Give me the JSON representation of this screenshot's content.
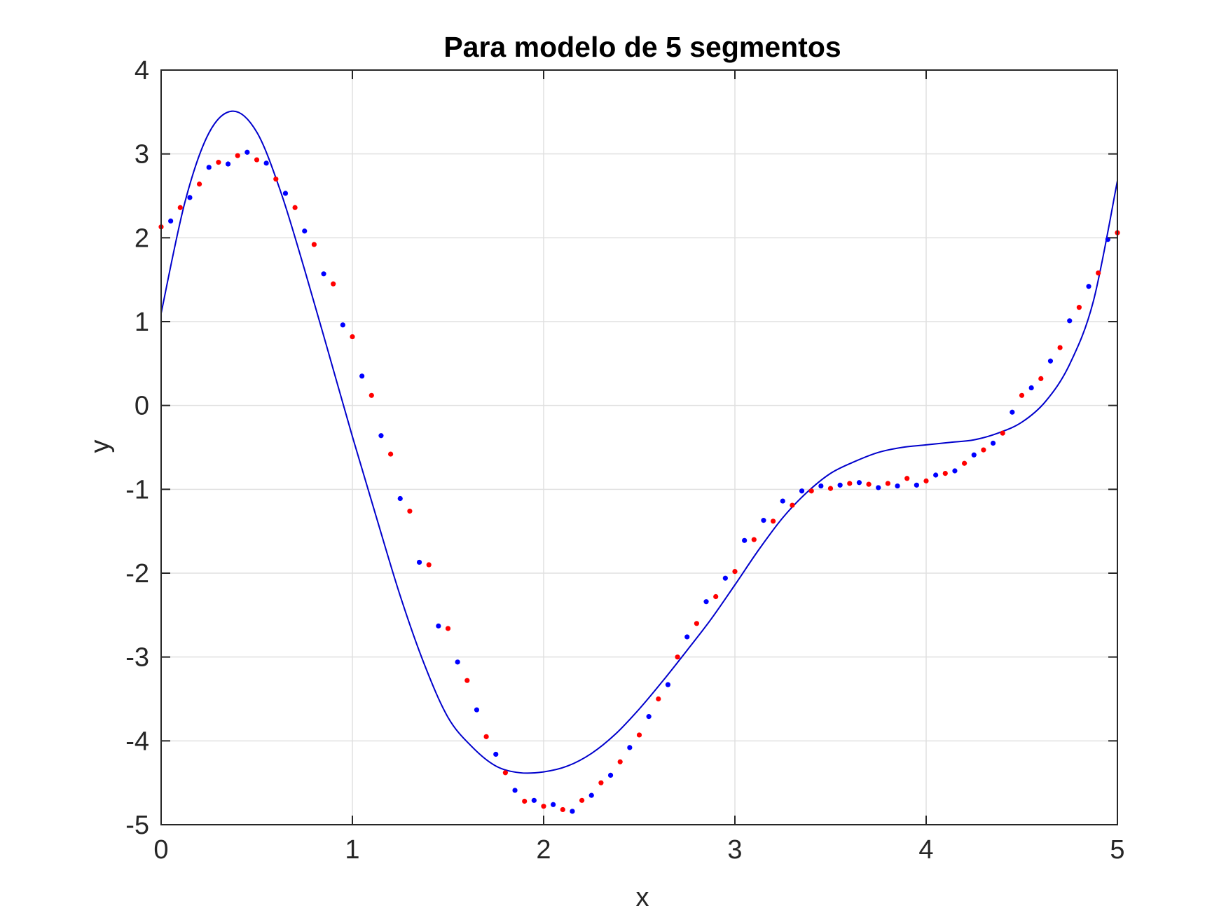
{
  "chart_data": {
    "type": "scatter",
    "title": "Para modelo de 5 segmentos",
    "xlabel": "x",
    "ylabel": "y",
    "xlim": [
      0,
      5
    ],
    "ylim": [
      -5,
      4
    ],
    "xticks": [
      0,
      1,
      2,
      3,
      4,
      5
    ],
    "yticks": [
      -5,
      -4,
      -3,
      -2,
      -1,
      0,
      1,
      2,
      3,
      4
    ],
    "xtick_labels": [
      "0",
      "1",
      "2",
      "3",
      "4",
      "5"
    ],
    "ytick_labels": [
      "-5",
      "-4",
      "-3",
      "-2",
      "-1",
      "0",
      "1",
      "2",
      "3",
      "4"
    ],
    "grid": true,
    "colors": {
      "red_points": "#ff0000",
      "blue_points": "#0000ff",
      "model_line": "#0000cc",
      "axes": "#262626",
      "grid": "#e0e0e0"
    },
    "series": [
      {
        "kind": "points-red",
        "x": [
          0.0,
          0.1,
          0.2,
          0.3,
          0.4,
          0.5,
          0.6,
          0.7,
          0.8,
          0.9,
          1.0,
          1.1,
          1.2,
          1.3,
          1.4,
          1.5,
          1.6,
          1.7,
          1.8,
          1.9,
          2.0,
          2.1,
          2.2,
          2.3,
          2.4,
          2.5,
          2.6,
          2.7,
          2.8,
          2.9,
          3.0,
          3.1,
          3.2,
          3.3,
          3.4,
          3.5,
          3.6,
          3.7,
          3.8,
          3.9,
          4.0,
          4.1,
          4.2,
          4.3,
          4.4,
          4.5,
          4.6,
          4.7,
          4.8,
          4.9,
          5.0
        ],
        "y": [
          2.13,
          2.36,
          2.64,
          2.9,
          2.98,
          2.93,
          2.7,
          2.36,
          1.92,
          1.45,
          0.82,
          0.12,
          -0.58,
          -1.26,
          -1.9,
          -2.66,
          -3.28,
          -3.95,
          -4.38,
          -4.72,
          -4.78,
          -4.82,
          -4.71,
          -4.5,
          -4.25,
          -3.93,
          -3.5,
          -3.0,
          -2.6,
          -2.28,
          -1.98,
          -1.6,
          -1.38,
          -1.19,
          -1.02,
          -0.99,
          -0.93,
          -0.94,
          -0.93,
          -0.87,
          -0.9,
          -0.81,
          -0.69,
          -0.53,
          -0.33,
          0.12,
          0.32,
          0.69,
          1.17,
          1.58,
          2.06
        ]
      },
      {
        "kind": "points-blue",
        "x": [
          0.05,
          0.15,
          0.25,
          0.35,
          0.45,
          0.55,
          0.65,
          0.75,
          0.85,
          0.95,
          1.05,
          1.15,
          1.25,
          1.35,
          1.45,
          1.55,
          1.65,
          1.75,
          1.85,
          1.95,
          2.05,
          2.15,
          2.25,
          2.35,
          2.45,
          2.55,
          2.65,
          2.75,
          2.85,
          2.95,
          3.05,
          3.15,
          3.25,
          3.35,
          3.45,
          3.55,
          3.65,
          3.75,
          3.85,
          3.95,
          4.05,
          4.15,
          4.25,
          4.35,
          4.45,
          4.55,
          4.65,
          4.75,
          4.85,
          4.95
        ],
        "y": [
          2.2,
          2.48,
          2.84,
          2.88,
          3.02,
          2.89,
          2.53,
          2.08,
          1.57,
          0.96,
          0.35,
          -0.36,
          -1.11,
          -1.87,
          -2.63,
          -3.06,
          -3.63,
          -4.16,
          -4.59,
          -4.71,
          -4.76,
          -4.84,
          -4.65,
          -4.41,
          -4.08,
          -3.71,
          -3.33,
          -2.76,
          -2.34,
          -2.06,
          -1.61,
          -1.37,
          -1.14,
          -1.02,
          -0.96,
          -0.95,
          -0.92,
          -0.98,
          -0.96,
          -0.95,
          -0.83,
          -0.78,
          -0.59,
          -0.45,
          -0.08,
          0.21,
          0.53,
          1.01,
          1.42,
          1.98
        ]
      },
      {
        "kind": "model-line",
        "x": [
          0.0,
          0.125,
          0.25,
          0.375,
          0.5,
          0.625,
          0.75,
          0.875,
          1.0,
          1.125,
          1.25,
          1.375,
          1.5,
          1.625,
          1.75,
          1.875,
          2.0,
          2.125,
          2.25,
          2.375,
          2.5,
          2.625,
          2.75,
          2.875,
          3.0,
          3.125,
          3.25,
          3.375,
          3.5,
          3.625,
          3.75,
          3.875,
          4.0,
          4.125,
          4.25,
          4.375,
          4.5,
          4.625,
          4.75,
          4.875,
          5.0
        ],
        "y": [
          1.1,
          2.43,
          3.25,
          3.51,
          3.26,
          2.55,
          1.62,
          0.63,
          -0.37,
          -1.33,
          -2.27,
          -3.08,
          -3.72,
          -4.07,
          -4.3,
          -4.38,
          -4.37,
          -4.3,
          -4.15,
          -3.92,
          -3.62,
          -3.28,
          -2.92,
          -2.55,
          -2.14,
          -1.72,
          -1.34,
          -1.04,
          -0.81,
          -0.67,
          -0.56,
          -0.5,
          -0.47,
          -0.44,
          -0.41,
          -0.33,
          -0.2,
          0.05,
          0.49,
          1.25,
          2.68
        ]
      }
    ]
  }
}
